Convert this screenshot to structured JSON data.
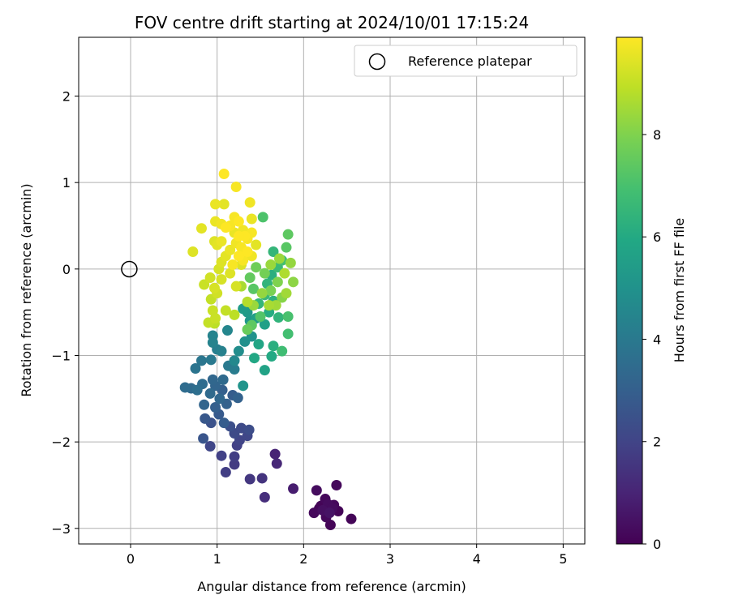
{
  "chart_data": {
    "type": "scatter",
    "title": "FOV centre drift starting at 2024/10/01 17:15:24",
    "xlabel": "Angular distance from reference (arcmin)",
    "ylabel": "Rotation from reference (arcmin)",
    "xlim": [
      -0.6,
      5.25
    ],
    "ylim": [
      -3.18,
      2.68
    ],
    "xticks": [
      0,
      1,
      2,
      3,
      4,
      5
    ],
    "yticks": [
      -3,
      -2,
      -1,
      0,
      1,
      2
    ],
    "grid": true,
    "colorbar": {
      "label": "Hours from first FF file",
      "range": [
        0,
        9.9
      ],
      "ticks": [
        0,
        2,
        4,
        6,
        8
      ],
      "colormap": "viridis"
    },
    "legend": {
      "placement": "top-right",
      "entries": [
        {
          "label": "Reference platepar",
          "marker": "hollow-circle"
        }
      ]
    },
    "reference_point": {
      "x": 0,
      "y": 0
    },
    "points": [
      {
        "x": 2.38,
        "y": -2.5,
        "h": 0.2
      },
      {
        "x": 2.55,
        "y": -2.89,
        "h": 0.1
      },
      {
        "x": 2.31,
        "y": -2.96,
        "h": 0.1
      },
      {
        "x": 2.12,
        "y": -2.82,
        "h": 0.2
      },
      {
        "x": 2.15,
        "y": -2.56,
        "h": 0.3
      },
      {
        "x": 2.25,
        "y": -2.66,
        "h": 0.2
      },
      {
        "x": 2.28,
        "y": -2.72,
        "h": 0.3
      },
      {
        "x": 2.18,
        "y": -2.77,
        "h": 0.1
      },
      {
        "x": 2.22,
        "y": -2.79,
        "h": 0.4
      },
      {
        "x": 2.26,
        "y": -2.87,
        "h": 0.2
      },
      {
        "x": 2.33,
        "y": -2.77,
        "h": 0.3
      },
      {
        "x": 2.4,
        "y": -2.8,
        "h": 0.1
      },
      {
        "x": 2.3,
        "y": -2.82,
        "h": 0.5
      },
      {
        "x": 2.2,
        "y": -2.74,
        "h": 0.1
      },
      {
        "x": 2.35,
        "y": -2.73,
        "h": 0.2
      },
      {
        "x": 1.88,
        "y": -2.54,
        "h": 0.8
      },
      {
        "x": 1.67,
        "y": -2.14,
        "h": 1.0
      },
      {
        "x": 1.69,
        "y": -2.25,
        "h": 1.1
      },
      {
        "x": 1.55,
        "y": -2.64,
        "h": 1.3
      },
      {
        "x": 1.52,
        "y": -2.42,
        "h": 1.5
      },
      {
        "x": 1.38,
        "y": -2.43,
        "h": 1.6
      },
      {
        "x": 1.2,
        "y": -2.26,
        "h": 1.7
      },
      {
        "x": 1.1,
        "y": -2.35,
        "h": 1.8
      },
      {
        "x": 1.05,
        "y": -2.16,
        "h": 1.9
      },
      {
        "x": 1.2,
        "y": -2.17,
        "h": 1.8
      },
      {
        "x": 0.92,
        "y": -2.05,
        "h": 2.1
      },
      {
        "x": 1.23,
        "y": -2.04,
        "h": 1.9
      },
      {
        "x": 1.26,
        "y": -1.98,
        "h": 2.0
      },
      {
        "x": 1.2,
        "y": -1.9,
        "h": 2.2
      },
      {
        "x": 1.37,
        "y": -1.86,
        "h": 2.3
      },
      {
        "x": 1.35,
        "y": -1.93,
        "h": 2.1
      },
      {
        "x": 1.28,
        "y": -1.84,
        "h": 2.2
      },
      {
        "x": 1.15,
        "y": -1.82,
        "h": 2.4
      },
      {
        "x": 0.84,
        "y": -1.96,
        "h": 2.6
      },
      {
        "x": 0.86,
        "y": -1.73,
        "h": 2.7
      },
      {
        "x": 0.93,
        "y": -1.78,
        "h": 2.5
      },
      {
        "x": 1.02,
        "y": -1.68,
        "h": 2.8
      },
      {
        "x": 1.08,
        "y": -1.78,
        "h": 2.9
      },
      {
        "x": 0.98,
        "y": -1.6,
        "h": 3.0
      },
      {
        "x": 1.11,
        "y": -1.56,
        "h": 3.1
      },
      {
        "x": 0.85,
        "y": -1.57,
        "h": 3.2
      },
      {
        "x": 1.03,
        "y": -1.5,
        "h": 3.3
      },
      {
        "x": 0.92,
        "y": -1.44,
        "h": 3.4
      },
      {
        "x": 1.06,
        "y": -1.4,
        "h": 3.0
      },
      {
        "x": 1.18,
        "y": -1.46,
        "h": 2.9
      },
      {
        "x": 1.24,
        "y": -1.49,
        "h": 3.1
      },
      {
        "x": 0.83,
        "y": -1.33,
        "h": 3.5
      },
      {
        "x": 0.95,
        "y": -1.28,
        "h": 3.3
      },
      {
        "x": 0.98,
        "y": -1.35,
        "h": 3.2
      },
      {
        "x": 1.07,
        "y": -1.28,
        "h": 3.4
      },
      {
        "x": 0.77,
        "y": -1.4,
        "h": 3.6
      },
      {
        "x": 0.63,
        "y": -1.37,
        "h": 3.5
      },
      {
        "x": 0.7,
        "y": -1.38,
        "h": 3.4
      },
      {
        "x": 0.75,
        "y": -1.15,
        "h": 3.8
      },
      {
        "x": 0.82,
        "y": -1.06,
        "h": 3.9
      },
      {
        "x": 0.93,
        "y": -1.05,
        "h": 4.0
      },
      {
        "x": 1.0,
        "y": -0.93,
        "h": 4.2
      },
      {
        "x": 1.05,
        "y": -0.95,
        "h": 4.3
      },
      {
        "x": 1.12,
        "y": -0.71,
        "h": 4.5
      },
      {
        "x": 0.95,
        "y": -0.77,
        "h": 4.4
      },
      {
        "x": 0.95,
        "y": -0.85,
        "h": 4.4
      },
      {
        "x": 1.13,
        "y": -1.12,
        "h": 4.0
      },
      {
        "x": 1.2,
        "y": -1.16,
        "h": 4.1
      },
      {
        "x": 1.2,
        "y": -1.06,
        "h": 4.6
      },
      {
        "x": 1.25,
        "y": -0.95,
        "h": 4.8
      },
      {
        "x": 1.32,
        "y": -0.84,
        "h": 4.9
      },
      {
        "x": 1.4,
        "y": -0.78,
        "h": 5.0
      },
      {
        "x": 1.3,
        "y": -1.35,
        "h": 5.1
      },
      {
        "x": 1.38,
        "y": -0.6,
        "h": 5.2
      },
      {
        "x": 1.35,
        "y": -0.5,
        "h": 5.3
      },
      {
        "x": 1.3,
        "y": -0.46,
        "h": 5.4
      },
      {
        "x": 1.45,
        "y": -0.57,
        "h": 5.5
      },
      {
        "x": 1.55,
        "y": -0.64,
        "h": 5.6
      },
      {
        "x": 1.55,
        "y": -1.17,
        "h": 5.7
      },
      {
        "x": 1.48,
        "y": -0.87,
        "h": 5.8
      },
      {
        "x": 1.43,
        "y": -1.03,
        "h": 5.9
      },
      {
        "x": 1.63,
        "y": -1.01,
        "h": 6.0
      },
      {
        "x": 1.65,
        "y": -0.89,
        "h": 6.2
      },
      {
        "x": 1.75,
        "y": -0.95,
        "h": 6.8
      },
      {
        "x": 1.82,
        "y": -0.75,
        "h": 6.9
      },
      {
        "x": 1.82,
        "y": -0.55,
        "h": 7.0
      },
      {
        "x": 1.71,
        "y": -0.56,
        "h": 6.4
      },
      {
        "x": 1.6,
        "y": -0.5,
        "h": 6.1
      },
      {
        "x": 1.65,
        "y": -0.37,
        "h": 6.3
      },
      {
        "x": 1.55,
        "y": -0.3,
        "h": 6.6
      },
      {
        "x": 1.48,
        "y": -0.4,
        "h": 6.5
      },
      {
        "x": 1.58,
        "y": -0.17,
        "h": 6.4
      },
      {
        "x": 1.63,
        "y": -0.07,
        "h": 6.2
      },
      {
        "x": 1.7,
        "y": 0.02,
        "h": 6.7
      },
      {
        "x": 1.75,
        "y": 0.1,
        "h": 6.9
      },
      {
        "x": 1.65,
        "y": 0.2,
        "h": 6.5
      },
      {
        "x": 1.8,
        "y": 0.25,
        "h": 7.3
      },
      {
        "x": 1.82,
        "y": 0.4,
        "h": 7.4
      },
      {
        "x": 1.53,
        "y": 0.6,
        "h": 7.1
      },
      {
        "x": 1.5,
        "y": -0.55,
        "h": 7.2
      },
      {
        "x": 1.4,
        "y": -0.65,
        "h": 7.4
      },
      {
        "x": 1.35,
        "y": -0.7,
        "h": 7.6
      },
      {
        "x": 1.42,
        "y": -0.23,
        "h": 7.3
      },
      {
        "x": 1.38,
        "y": -0.1,
        "h": 7.5
      },
      {
        "x": 1.45,
        "y": 0.02,
        "h": 7.7
      },
      {
        "x": 1.55,
        "y": -0.05,
        "h": 7.8
      },
      {
        "x": 1.62,
        "y": -0.25,
        "h": 7.9
      },
      {
        "x": 1.7,
        "y": -0.15,
        "h": 8.0
      },
      {
        "x": 1.75,
        "y": -0.33,
        "h": 8.1
      },
      {
        "x": 1.88,
        "y": -0.15,
        "h": 8.2
      },
      {
        "x": 1.85,
        "y": 0.07,
        "h": 8.3
      },
      {
        "x": 1.72,
        "y": 0.12,
        "h": 8.4
      },
      {
        "x": 1.68,
        "y": -0.42,
        "h": 8.5
      },
      {
        "x": 1.6,
        "y": -0.42,
        "h": 8.6
      },
      {
        "x": 1.52,
        "y": -0.28,
        "h": 8.3
      },
      {
        "x": 1.8,
        "y": -0.28,
        "h": 8.5
      },
      {
        "x": 1.78,
        "y": -0.05,
        "h": 8.7
      },
      {
        "x": 1.62,
        "y": 0.05,
        "h": 8.4
      },
      {
        "x": 1.28,
        "y": -0.2,
        "h": 8.6
      },
      {
        "x": 1.35,
        "y": -0.38,
        "h": 8.8
      },
      {
        "x": 1.42,
        "y": -0.42,
        "h": 8.4
      },
      {
        "x": 1.2,
        "y": -0.53,
        "h": 8.9
      },
      {
        "x": 1.1,
        "y": -0.48,
        "h": 9.0
      },
      {
        "x": 0.98,
        "y": -0.57,
        "h": 9.1
      },
      {
        "x": 0.97,
        "y": -0.63,
        "h": 8.9
      },
      {
        "x": 0.9,
        "y": -0.62,
        "h": 9.0
      },
      {
        "x": 0.95,
        "y": -0.48,
        "h": 9.1
      },
      {
        "x": 0.93,
        "y": -0.35,
        "h": 9.0
      },
      {
        "x": 1.0,
        "y": -0.28,
        "h": 9.2
      },
      {
        "x": 0.97,
        "y": -0.22,
        "h": 9.3
      },
      {
        "x": 0.85,
        "y": -0.18,
        "h": 9.1
      },
      {
        "x": 0.92,
        "y": -0.1,
        "h": 9.2
      },
      {
        "x": 1.05,
        "y": -0.12,
        "h": 9.3
      },
      {
        "x": 1.15,
        "y": -0.05,
        "h": 9.4
      },
      {
        "x": 1.22,
        "y": -0.2,
        "h": 9.3
      },
      {
        "x": 1.28,
        "y": 0.05,
        "h": 9.4
      },
      {
        "x": 1.02,
        "y": 0.0,
        "h": 9.3
      },
      {
        "x": 1.05,
        "y": 0.08,
        "h": 9.4
      },
      {
        "x": 1.1,
        "y": 0.15,
        "h": 9.5
      },
      {
        "x": 1.0,
        "y": 0.28,
        "h": 9.5
      },
      {
        "x": 0.97,
        "y": 0.32,
        "h": 9.4
      },
      {
        "x": 1.05,
        "y": 0.32,
        "h": 9.6
      },
      {
        "x": 1.15,
        "y": 0.22,
        "h": 9.6
      },
      {
        "x": 1.22,
        "y": 0.3,
        "h": 9.7
      },
      {
        "x": 1.28,
        "y": 0.25,
        "h": 9.8
      },
      {
        "x": 1.35,
        "y": 0.35,
        "h": 9.8
      },
      {
        "x": 1.3,
        "y": 0.45,
        "h": 9.7
      },
      {
        "x": 1.2,
        "y": 0.42,
        "h": 9.6
      },
      {
        "x": 1.15,
        "y": 0.5,
        "h": 9.8
      },
      {
        "x": 1.25,
        "y": 0.55,
        "h": 9.9
      },
      {
        "x": 1.2,
        "y": 0.6,
        "h": 9.8
      },
      {
        "x": 1.1,
        "y": 0.48,
        "h": 9.9
      },
      {
        "x": 1.05,
        "y": 0.52,
        "h": 9.7
      },
      {
        "x": 0.98,
        "y": 0.55,
        "h": 9.6
      },
      {
        "x": 0.82,
        "y": 0.47,
        "h": 9.5
      },
      {
        "x": 0.72,
        "y": 0.2,
        "h": 9.4
      },
      {
        "x": 1.08,
        "y": 0.75,
        "h": 9.5
      },
      {
        "x": 0.98,
        "y": 0.75,
        "h": 9.6
      },
      {
        "x": 1.38,
        "y": 0.77,
        "h": 9.7
      },
      {
        "x": 1.4,
        "y": 0.58,
        "h": 9.6
      },
      {
        "x": 1.45,
        "y": 0.28,
        "h": 9.5
      },
      {
        "x": 1.4,
        "y": 0.15,
        "h": 9.7
      },
      {
        "x": 1.3,
        "y": 0.1,
        "h": 9.8
      },
      {
        "x": 1.35,
        "y": 0.2,
        "h": 9.9
      },
      {
        "x": 1.25,
        "y": 0.15,
        "h": 9.9
      },
      {
        "x": 1.18,
        "y": 0.05,
        "h": 9.8
      },
      {
        "x": 1.08,
        "y": 1.1,
        "h": 9.9
      },
      {
        "x": 1.22,
        "y": 0.95,
        "h": 9.8
      },
      {
        "x": 1.32,
        "y": 0.38,
        "h": 9.9
      },
      {
        "x": 1.25,
        "y": 0.38,
        "h": 9.9
      },
      {
        "x": 1.4,
        "y": 0.42,
        "h": 9.8
      }
    ]
  }
}
